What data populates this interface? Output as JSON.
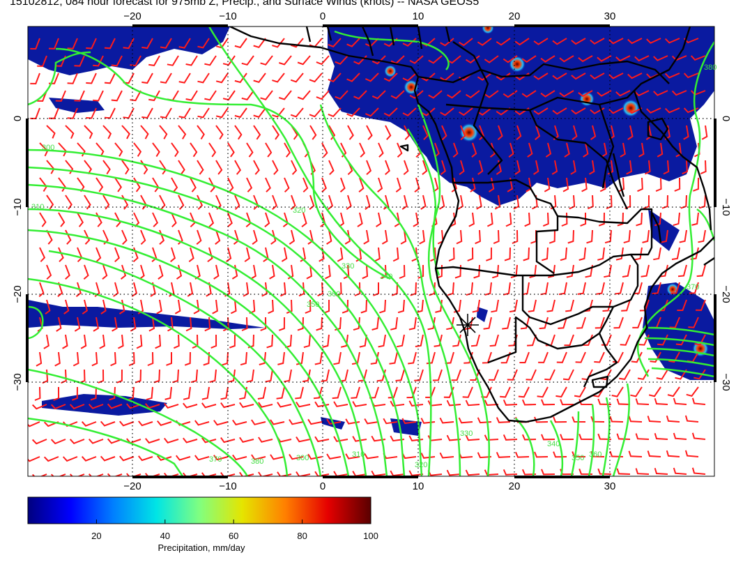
{
  "title": "15102812, 084 hour forecast for 975mb Z, Precip., and Surface Winds (knots) -- NASA GEOS5",
  "map": {
    "lon_labels": [
      "−20",
      "−10",
      "0",
      "10",
      "20",
      "30"
    ],
    "lat_labels": [
      "0",
      "−10",
      "−20",
      "−30"
    ],
    "contour_labels": [
      "300",
      "310",
      "320",
      "330",
      "340",
      "350",
      "360",
      "370",
      "380"
    ],
    "colors": {
      "wind_barb": "#ff1a1a",
      "contour": "#33ee33",
      "coast": "#000000",
      "precip_low": "#0a1aa0",
      "precip_high": "#7a0000"
    },
    "marker": "✕"
  },
  "colorbar": {
    "label": "Precipitation, mm/day",
    "ticks": [
      "20",
      "40",
      "60",
      "80",
      "100"
    ],
    "range": [
      0,
      100
    ],
    "stops": [
      "#00007f",
      "#0000ff",
      "#0080ff",
      "#00e5e5",
      "#80ff80",
      "#e5e500",
      "#ff8000",
      "#e50000",
      "#5a0000"
    ]
  }
}
